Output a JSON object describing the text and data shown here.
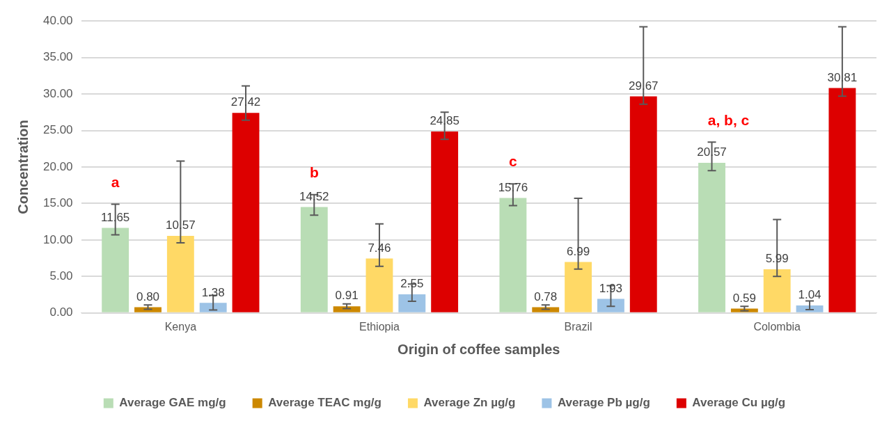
{
  "chart_data": {
    "type": "bar",
    "xlabel": "Origin of coffee samples",
    "ylabel": "Concentration",
    "categories": [
      "Kenya",
      "Ethiopia",
      "Brazil",
      "Colombia"
    ],
    "series": [
      {
        "name": "Average GAE mg/g",
        "color": "#b9ddb5",
        "values": [
          11.65,
          14.52,
          15.76,
          20.57
        ],
        "value_labels": [
          "11.65",
          "14.52",
          "15.76",
          "20.57"
        ],
        "errors": [
          [
            10.7,
            14.9
          ],
          [
            13.4,
            16.2
          ],
          [
            14.7,
            17.7
          ],
          [
            19.5,
            23.4
          ]
        ]
      },
      {
        "name": "Average TEAC mg/g",
        "color": "#cc8800",
        "values": [
          0.8,
          0.91,
          0.78,
          0.59
        ],
        "value_labels": [
          "0.80",
          "0.91",
          "0.78",
          "0.59"
        ],
        "errors": [
          [
            0.5,
            1.1
          ],
          [
            0.6,
            1.25
          ],
          [
            0.5,
            1.1
          ],
          [
            0.3,
            0.9
          ]
        ]
      },
      {
        "name": "Average Zn µg/g",
        "color": "#ffd966",
        "values": [
          10.57,
          7.46,
          6.99,
          5.99
        ],
        "value_labels": [
          "10.57",
          "7.46",
          "6.99",
          "5.99"
        ],
        "errors": [
          [
            9.6,
            20.8
          ],
          [
            6.4,
            12.2
          ],
          [
            6.0,
            15.7
          ],
          [
            5.0,
            12.8
          ]
        ]
      },
      {
        "name": "Average Pb µg/g",
        "color": "#9dc3e6",
        "values": [
          1.38,
          2.55,
          1.93,
          1.04
        ],
        "value_labels": [
          "1.38",
          "2.55",
          "1.93",
          "1.04"
        ],
        "errors": [
          [
            0.4,
            2.4
          ],
          [
            1.6,
            3.95
          ],
          [
            0.9,
            3.75
          ],
          [
            0.45,
            1.65
          ]
        ]
      },
      {
        "name": "Average Cu µg/g",
        "color": "#dd0000",
        "values": [
          27.42,
          24.85,
          29.67,
          30.81
        ],
        "value_labels": [
          "27.42",
          "24.85",
          "29.67",
          "30.81"
        ],
        "errors": [
          [
            26.4,
            31.1
          ],
          [
            23.8,
            27.5
          ],
          [
            28.6,
            39.2
          ],
          [
            29.7,
            39.2
          ]
        ]
      }
    ],
    "ylim": [
      0,
      40
    ],
    "yticks": [
      {
        "value": 0,
        "label": "0.00"
      },
      {
        "value": 5,
        "label": "5.00"
      },
      {
        "value": 10,
        "label": "10.00"
      },
      {
        "value": 15,
        "label": "15.00"
      },
      {
        "value": 20,
        "label": "20.00"
      },
      {
        "value": 25,
        "label": "25.00"
      },
      {
        "value": 30,
        "label": "30.00"
      },
      {
        "value": 35,
        "label": "35.00"
      },
      {
        "value": 40,
        "label": "40.00"
      }
    ],
    "grid": "y",
    "legend": "bottom",
    "annotations": [
      "a",
      "b",
      "c",
      "a, b, c"
    ]
  }
}
